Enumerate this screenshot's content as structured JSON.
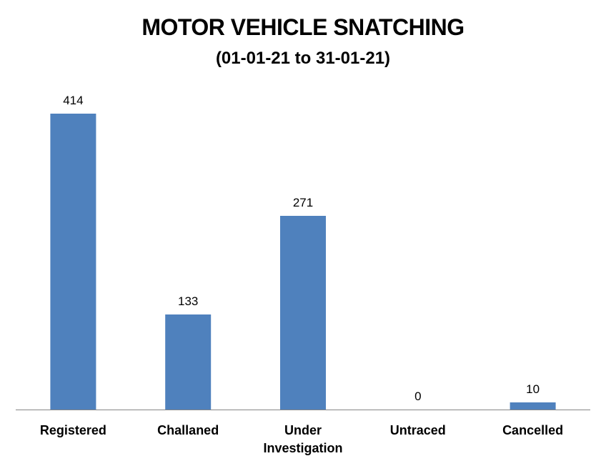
{
  "chart_data": {
    "type": "bar",
    "title": "MOTOR VEHICLE SNATCHING",
    "subtitle": "(01-01-21 to 31-01-21)",
    "categories": [
      [
        "Registered"
      ],
      [
        "Challaned"
      ],
      [
        "Under",
        "Investigation"
      ],
      [
        "Untraced"
      ],
      [
        "Cancelled"
      ]
    ],
    "values": [
      414,
      133,
      271,
      0,
      10
    ],
    "data_labels": [
      "414",
      "133",
      "271",
      "0",
      "10"
    ],
    "bar_color": "#4F81BD",
    "axis_color": "#868686",
    "ylim": [
      0,
      414
    ],
    "grid": false,
    "legend": "none"
  }
}
